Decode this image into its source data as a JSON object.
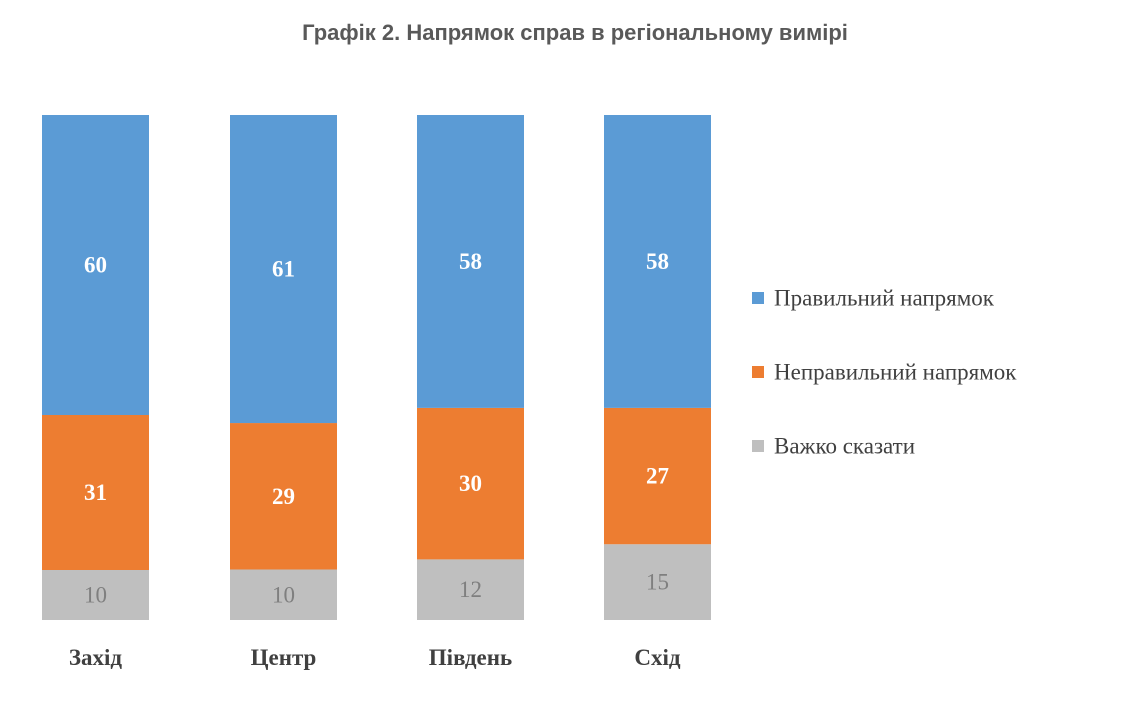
{
  "chart_data": {
    "type": "bar",
    "stacked": true,
    "title": "Графік 2. Напрямок справ в регіональному вимірі",
    "categories": [
      "Захід",
      "Центр",
      "Південь",
      "Схід"
    ],
    "series": [
      {
        "name": "Правильний напрямок",
        "color": "#5b9bd5",
        "values": [
          60,
          61,
          58,
          58
        ]
      },
      {
        "name": "Неправильний напрямок",
        "color": "#ed7d31",
        "values": [
          31,
          29,
          30,
          27
        ]
      },
      {
        "name": "Важко сказати",
        "color": "#bfbfbf",
        "values": [
          10,
          10,
          12,
          15
        ]
      }
    ],
    "legend_position": "right",
    "grid": false
  }
}
